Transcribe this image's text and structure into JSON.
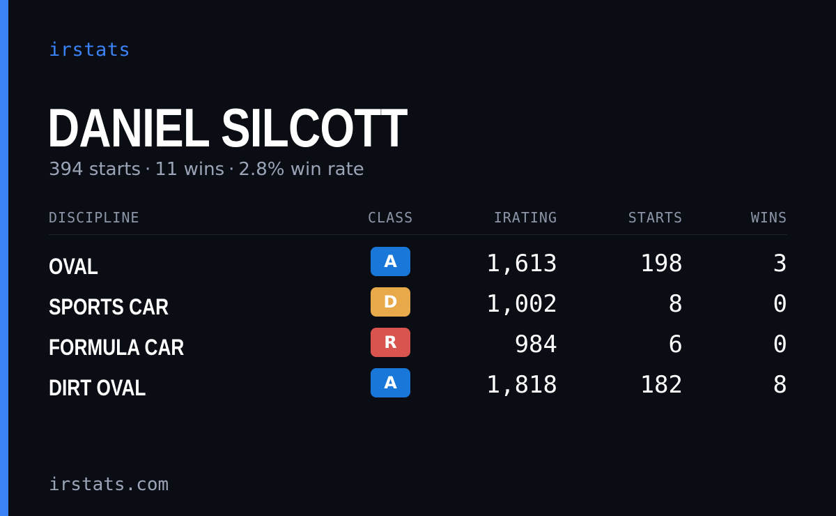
{
  "brand": "irstats",
  "driver": {
    "name": "DANIEL SILCOTT",
    "starts_text": "394 starts",
    "wins_text": "11 wins",
    "winrate_text": "2.8% win rate",
    "separator": "·"
  },
  "table": {
    "headers": {
      "discipline": "DISCIPLINE",
      "class": "CLASS",
      "irating": "IRATING",
      "starts": "STARTS",
      "wins": "WINS"
    },
    "rows": [
      {
        "discipline": "OVAL",
        "class": "A",
        "class_color": "#1877d8",
        "irating": "1,613",
        "starts": "198",
        "wins": "3"
      },
      {
        "discipline": "SPORTS CAR",
        "class": "D",
        "class_color": "#e8a94a",
        "irating": "1,002",
        "starts": "8",
        "wins": "0"
      },
      {
        "discipline": "FORMULA CAR",
        "class": "R",
        "class_color": "#d9534f",
        "irating": "984",
        "starts": "6",
        "wins": "0"
      },
      {
        "discipline": "DIRT OVAL",
        "class": "A",
        "class_color": "#1877d8",
        "irating": "1,818",
        "starts": "182",
        "wins": "8"
      }
    ]
  },
  "footer": "irstats.com",
  "colors": {
    "accent": "#3b82f6",
    "background": "#0a0d14",
    "muted_text": "#9aa4b6"
  }
}
